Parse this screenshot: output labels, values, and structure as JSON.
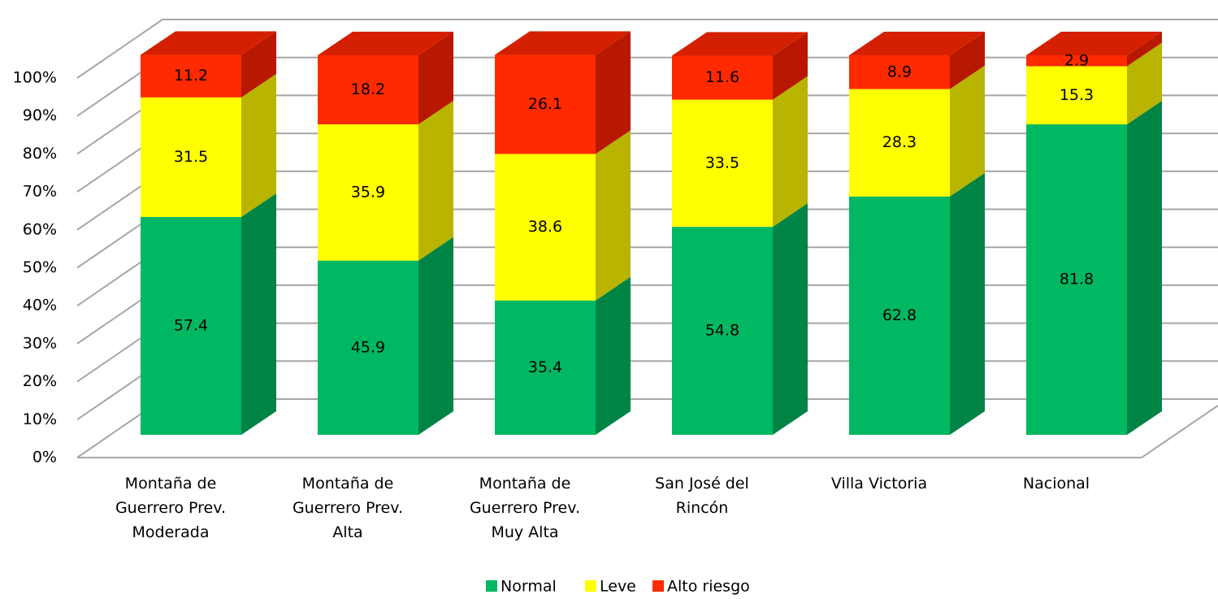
{
  "chart_data": {
    "type": "bar3d_stacked",
    "categories": [
      "Montaña de Guerrero Prev. Moderada",
      "Montaña de Guerrero Prev. Alta",
      "Montaña de Guerrero Prev. Muy Alta",
      "San José del Rincón",
      "Villa Victoria",
      "Nacional"
    ],
    "series": [
      {
        "name": "Normal",
        "color": "#00b862",
        "side_color": "#008446",
        "values": [
          57.4,
          45.9,
          35.4,
          54.8,
          62.8,
          81.8
        ]
      },
      {
        "name": "Leve",
        "color": "#ffff00",
        "side_color": "#b8b400",
        "values": [
          31.5,
          35.9,
          38.6,
          33.5,
          28.3,
          15.3
        ]
      },
      {
        "name": "Alto riesgo",
        "color": "#ff2a00",
        "side_color": "#b81800",
        "top_color": "#d42000",
        "values": [
          11.2,
          18.2,
          26.1,
          11.6,
          8.9,
          2.9
        ]
      }
    ],
    "ylim": [
      0,
      100
    ],
    "yticks": [
      {
        "value": 0,
        "label": "0%"
      },
      {
        "value": 10,
        "label": "10%"
      },
      {
        "value": 20,
        "label": "20%"
      },
      {
        "value": 30,
        "label": "30%"
      },
      {
        "value": 40,
        "label": "40%"
      },
      {
        "value": 50,
        "label": "50%"
      },
      {
        "value": 60,
        "label": "60%"
      },
      {
        "value": 70,
        "label": "70%"
      },
      {
        "value": 80,
        "label": "80%"
      },
      {
        "value": 90,
        "label": "90%"
      },
      {
        "value": 100,
        "label": "100%"
      }
    ],
    "grid": true,
    "legend": "bottom"
  }
}
